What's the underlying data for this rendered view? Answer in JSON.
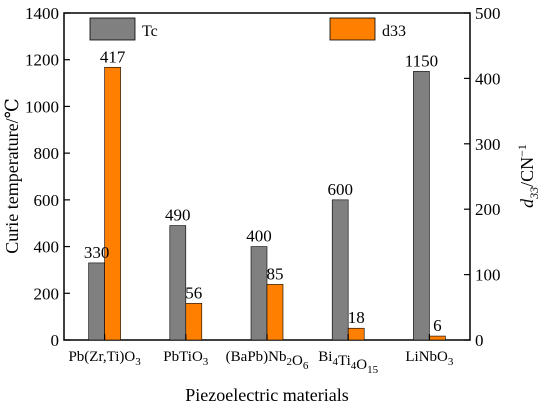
{
  "chart_data": {
    "type": "bar",
    "categories": [
      {
        "base": "Pb(Zr,Ti)O",
        "sub": "3",
        "tail": ""
      },
      {
        "base": "PbTiO",
        "sub": "3",
        "tail": ""
      },
      {
        "base": "(BaPb)Nb",
        "sub": "2",
        "mid": "O",
        "sub2": "6"
      },
      {
        "base": "Bi",
        "sub": "4",
        "mid": "Ti",
        "sub2": "4",
        "mid2": "O",
        "sub3": "15"
      },
      {
        "base": "LiNbO",
        "sub": "3",
        "tail": ""
      }
    ],
    "series": [
      {
        "name": "Tc",
        "axis": "left",
        "color": "#808080",
        "values": [
          330,
          490,
          400,
          600,
          1150
        ],
        "labels": [
          "330",
          "490",
          "400",
          "600",
          "1150"
        ]
      },
      {
        "name": "d33",
        "axis": "right",
        "color": "#ff8000",
        "values": [
          417,
          56,
          85,
          18,
          6
        ],
        "labels": [
          "417",
          "56",
          "85",
          "18",
          "6"
        ]
      }
    ],
    "xlabel": "Piezoelectric materials",
    "ylabel_left": "Curie temperature/℃",
    "ylabel_right": {
      "italic": "d",
      "sub": "33",
      "rest": "/CN",
      "sup": "−1"
    },
    "ylim_left": [
      0,
      1400
    ],
    "ylim_right": [
      0,
      500
    ],
    "yticks_left": [
      0,
      200,
      400,
      600,
      800,
      1000,
      1200,
      1400
    ],
    "yticks_right": [
      0,
      100,
      200,
      300,
      400,
      500
    ],
    "grid": false,
    "legend": "top"
  }
}
